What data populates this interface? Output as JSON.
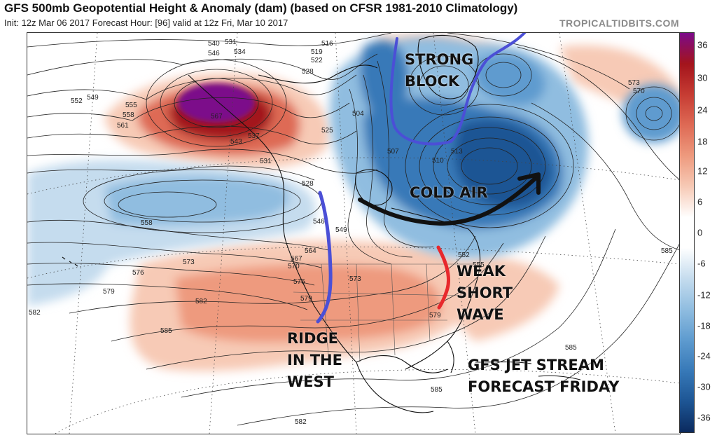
{
  "header": {
    "title": "GFS 500mb Geopotential Height & Anomaly (dam) (based on CFSR 1981-2010 Climatology)",
    "subtitle": "Init: 12z Mar 06 2017   Forecast Hour: [96]   valid at 12z Fri, Mar 10 2017",
    "credit": "TROPICALTIDBITS.COM"
  },
  "colorbar": {
    "ticks": [
      "36",
      "30",
      "24",
      "18",
      "12",
      "6",
      "0",
      "-6",
      "-12",
      "-18",
      "-24",
      "-30",
      "-36"
    ],
    "colors": {
      "max": "#7b0a8a",
      "p30": "#a3141c",
      "p24": "#c63c33",
      "p18": "#de6a55",
      "p12": "#ee9a7e",
      "p6": "#f7cab6",
      "zero": "#ffffff",
      "m6": "#c5dcee",
      "m12": "#90bde0",
      "m18": "#5e9bcf",
      "m24": "#3779b8",
      "m30": "#1d5594",
      "min": "#0b2a5e"
    }
  },
  "annotations": {
    "strong_block_1": "STRONG",
    "strong_block_2": "BLOCK",
    "cold_air": "COLD AIR",
    "weak_1": "WEAK",
    "weak_2": "SHORT",
    "weak_3": "WAVE",
    "ridge_1": "RIDGE",
    "ridge_2": "IN THE",
    "ridge_3": "WEST",
    "jet_1": "GFS JET STREAM",
    "jet_2": "FORECAST FRIDAY"
  },
  "height_labels": {
    "l1": "540",
    "l2": "546",
    "l3": "531",
    "l4": "534",
    "l5": "549",
    "l6": "552",
    "l7": "555",
    "l8": "558",
    "l9": "561",
    "l10": "567",
    "l11": "528",
    "l12": "519",
    "l13": "522",
    "l14": "516",
    "l15": "525",
    "l16": "537",
    "l17": "543",
    "l18": "531",
    "l19": "528",
    "l20": "507",
    "l21": "510",
    "l22": "513",
    "l23": "504",
    "l24": "573",
    "l25": "570",
    "l26": "558",
    "l27": "546",
    "l28": "549",
    "l29": "564",
    "l30": "567",
    "l31": "570",
    "l32": "576",
    "l33": "579",
    "l34": "573",
    "l35": "576",
    "l36": "582",
    "l37": "585",
    "l38": "579",
    "l39": "582",
    "l40": "585",
    "l41": "585",
    "l42": "582",
    "l43": "579",
    "l44": "585",
    "l45": "573",
    "l46": "552",
    "l47": "555"
  },
  "legend_colors": {
    "ridge_line": "#4b4fd6",
    "block_line": "#4b4fd6",
    "shortwave_line": "#e8282c",
    "cold_air_arrow": "#111111"
  }
}
